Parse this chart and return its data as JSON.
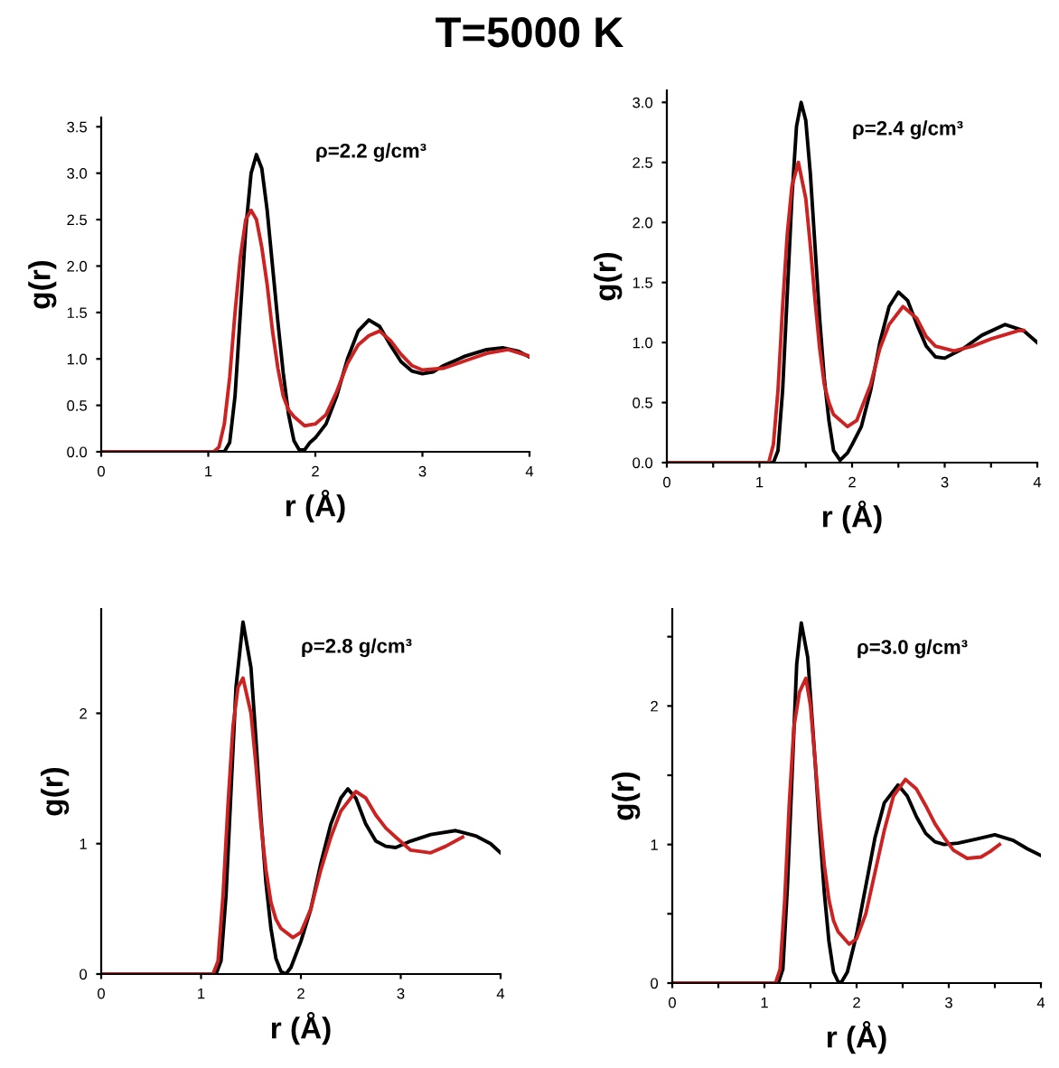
{
  "chart_data": [
    {
      "type": "line",
      "title": "T=5000 K",
      "xlabel": "r (Å)",
      "ylabel": "g(r)",
      "annotations": [
        "ρ=2.2 g/cm³"
      ],
      "xlim": [
        0,
        4
      ],
      "ylim": [
        0,
        3.6
      ],
      "xticks": [
        0,
        1,
        2,
        3,
        4
      ],
      "yticks": [
        {
          "value": 0,
          "label": "0.0"
        },
        0.5,
        {
          "value": 1,
          "label": "1.0"
        },
        1.5,
        {
          "value": 2,
          "label": "2.0"
        },
        2.5,
        {
          "value": 3,
          "label": "3.0"
        },
        3.5
      ],
      "grid": false,
      "legend": false,
      "series": [
        {
          "color": "#000000",
          "x": [
            0,
            1.15,
            1.2,
            1.25,
            1.3,
            1.35,
            1.4,
            1.45,
            1.5,
            1.55,
            1.6,
            1.65,
            1.7,
            1.75,
            1.8,
            1.85,
            1.9,
            1.95,
            2.0,
            2.1,
            2.2,
            2.3,
            2.4,
            2.5,
            2.6,
            2.7,
            2.8,
            2.9,
            3.0,
            3.1,
            3.2,
            3.4,
            3.6,
            3.75,
            3.9,
            4.0
          ],
          "values": [
            0,
            0,
            0.1,
            0.6,
            1.5,
            2.4,
            3.0,
            3.2,
            3.05,
            2.6,
            2.0,
            1.4,
            0.85,
            0.4,
            0.12,
            0.02,
            0.02,
            0.1,
            0.15,
            0.3,
            0.6,
            1.0,
            1.3,
            1.42,
            1.35,
            1.15,
            0.97,
            0.87,
            0.84,
            0.86,
            0.93,
            1.03,
            1.1,
            1.12,
            1.08,
            1.02
          ]
        },
        {
          "color": "#cc2222",
          "x": [
            0,
            1.05,
            1.1,
            1.15,
            1.2,
            1.25,
            1.3,
            1.35,
            1.4,
            1.45,
            1.5,
            1.55,
            1.6,
            1.65,
            1.7,
            1.75,
            1.8,
            1.9,
            2.0,
            2.1,
            2.2,
            2.3,
            2.4,
            2.5,
            2.6,
            2.7,
            2.8,
            2.9,
            3.0,
            3.2,
            3.4,
            3.6,
            3.8,
            4.0
          ],
          "values": [
            0,
            0,
            0.05,
            0.3,
            0.8,
            1.5,
            2.1,
            2.5,
            2.6,
            2.5,
            2.2,
            1.8,
            1.3,
            0.9,
            0.6,
            0.45,
            0.38,
            0.28,
            0.3,
            0.4,
            0.65,
            0.95,
            1.15,
            1.25,
            1.3,
            1.2,
            1.05,
            0.93,
            0.88,
            0.9,
            0.98,
            1.06,
            1.1,
            1.03
          ]
        }
      ]
    },
    {
      "type": "line",
      "xlabel": "r (Å)",
      "ylabel": "g(r)",
      "annotations": [
        "ρ=2.4 g/cm³"
      ],
      "xlim": [
        0,
        4
      ],
      "ylim": [
        0,
        3.1
      ],
      "xticks": [
        0,
        {
          "value": 0.5,
          "label": null
        },
        1,
        {
          "value": 1.5,
          "label": null
        },
        2,
        {
          "value": 2.5,
          "label": null
        },
        3,
        {
          "value": 3.5,
          "label": null
        },
        4
      ],
      "yticks": [
        {
          "value": 0,
          "label": "0.0"
        },
        0.5,
        {
          "value": 1,
          "label": "1.0"
        },
        1.5,
        {
          "value": 2,
          "label": "2.0"
        },
        2.5,
        {
          "value": 3,
          "label": "3.0"
        }
      ],
      "grid": false,
      "legend": false,
      "series": [
        {
          "color": "#000000",
          "x": [
            0,
            1.15,
            1.2,
            1.25,
            1.3,
            1.35,
            1.4,
            1.45,
            1.5,
            1.55,
            1.6,
            1.65,
            1.7,
            1.75,
            1.8,
            1.87,
            1.95,
            2.0,
            2.1,
            2.2,
            2.3,
            2.4,
            2.5,
            2.6,
            2.7,
            2.8,
            2.9,
            3.0,
            3.2,
            3.4,
            3.65,
            3.85,
            4.0
          ],
          "values": [
            0,
            0,
            0.1,
            0.6,
            1.4,
            2.2,
            2.8,
            3.0,
            2.85,
            2.4,
            1.8,
            1.2,
            0.7,
            0.35,
            0.1,
            0.02,
            0.08,
            0.15,
            0.3,
            0.6,
            1.0,
            1.3,
            1.42,
            1.35,
            1.15,
            0.97,
            0.88,
            0.87,
            0.95,
            1.06,
            1.15,
            1.1,
            1.0
          ]
        },
        {
          "color": "#cc2222",
          "x": [
            0,
            1.1,
            1.15,
            1.2,
            1.25,
            1.3,
            1.35,
            1.42,
            1.5,
            1.55,
            1.6,
            1.65,
            1.7,
            1.75,
            1.8,
            1.95,
            2.05,
            2.2,
            2.3,
            2.4,
            2.55,
            2.7,
            2.8,
            2.9,
            3.1,
            3.3,
            3.5,
            3.8,
            3.85
          ],
          "values": [
            0,
            0,
            0.15,
            0.6,
            1.3,
            1.9,
            2.3,
            2.5,
            2.2,
            1.8,
            1.35,
            0.95,
            0.65,
            0.5,
            0.4,
            0.3,
            0.35,
            0.65,
            0.95,
            1.15,
            1.3,
            1.2,
            1.05,
            0.97,
            0.93,
            0.97,
            1.03,
            1.1,
            1.1
          ]
        }
      ]
    },
    {
      "type": "line",
      "xlabel": "r (Å)",
      "ylabel": "g(r)",
      "annotations": [
        "ρ=2.8 g/cm³"
      ],
      "xlim": [
        0,
        4
      ],
      "ylim": [
        0,
        2.8
      ],
      "xticks": [
        0,
        1,
        2,
        3,
        4
      ],
      "yticks": [
        0,
        1,
        2
      ],
      "grid": false,
      "legend": false,
      "series": [
        {
          "color": "#000000",
          "x": [
            0,
            1.15,
            1.2,
            1.25,
            1.3,
            1.35,
            1.42,
            1.5,
            1.55,
            1.6,
            1.65,
            1.7,
            1.75,
            1.8,
            1.85,
            1.9,
            2.0,
            2.1,
            2.2,
            2.3,
            2.4,
            2.47,
            2.55,
            2.65,
            2.75,
            2.85,
            2.95,
            3.1,
            3.3,
            3.55,
            3.75,
            3.9,
            4.0
          ],
          "values": [
            0,
            0,
            0.1,
            0.6,
            1.4,
            2.2,
            2.7,
            2.35,
            1.8,
            1.2,
            0.7,
            0.35,
            0.12,
            0.02,
            0.0,
            0.05,
            0.25,
            0.5,
            0.85,
            1.15,
            1.35,
            1.42,
            1.35,
            1.15,
            1.02,
            0.98,
            0.97,
            1.02,
            1.07,
            1.1,
            1.06,
            1.0,
            0.93
          ]
        },
        {
          "color": "#cc2222",
          "x": [
            0,
            1.12,
            1.17,
            1.22,
            1.27,
            1.32,
            1.37,
            1.42,
            1.5,
            1.55,
            1.6,
            1.65,
            1.7,
            1.75,
            1.8,
            1.92,
            2.0,
            2.1,
            2.2,
            2.3,
            2.4,
            2.55,
            2.65,
            2.75,
            2.85,
            2.95,
            3.1,
            3.3,
            3.45,
            3.62
          ],
          "values": [
            0,
            0,
            0.1,
            0.6,
            1.3,
            1.9,
            2.2,
            2.27,
            2.0,
            1.6,
            1.15,
            0.8,
            0.55,
            0.42,
            0.35,
            0.28,
            0.32,
            0.5,
            0.8,
            1.05,
            1.25,
            1.4,
            1.35,
            1.22,
            1.12,
            1.05,
            0.95,
            0.93,
            0.98,
            1.05
          ]
        }
      ]
    },
    {
      "type": "line",
      "xlabel": "r (Å)",
      "ylabel": "g(r)",
      "annotations": [
        "ρ=3.0 g/cm³"
      ],
      "xlim": [
        0,
        4
      ],
      "ylim": [
        0,
        2.7
      ],
      "xticks": [
        0,
        {
          "value": 0.5,
          "label": null
        },
        1,
        {
          "value": 1.5,
          "label": null
        },
        2,
        {
          "value": 2.5,
          "label": null
        },
        3,
        {
          "value": 3.5,
          "label": null
        },
        4
      ],
      "yticks": [
        0,
        {
          "value": 0.5,
          "label": null
        },
        1,
        {
          "value": 1.5,
          "label": null
        },
        2,
        {
          "value": 2.5,
          "label": null
        }
      ],
      "grid": false,
      "legend": false,
      "series": [
        {
          "color": "#000000",
          "x": [
            0,
            1.15,
            1.2,
            1.25,
            1.3,
            1.35,
            1.4,
            1.47,
            1.55,
            1.6,
            1.65,
            1.7,
            1.75,
            1.8,
            1.83,
            1.9,
            2.0,
            2.1,
            2.2,
            2.3,
            2.45,
            2.55,
            2.65,
            2.75,
            2.85,
            2.95,
            3.1,
            3.3,
            3.5,
            3.7,
            3.85,
            4.0
          ],
          "values": [
            0,
            0,
            0.1,
            0.7,
            1.5,
            2.3,
            2.6,
            2.35,
            1.6,
            1.1,
            0.65,
            0.3,
            0.08,
            0.01,
            0.0,
            0.08,
            0.35,
            0.7,
            1.05,
            1.3,
            1.43,
            1.35,
            1.2,
            1.08,
            1.02,
            1.0,
            1.01,
            1.04,
            1.07,
            1.03,
            0.97,
            0.92
          ]
        },
        {
          "color": "#cc2222",
          "x": [
            0,
            1.12,
            1.17,
            1.22,
            1.27,
            1.32,
            1.38,
            1.45,
            1.5,
            1.55,
            1.6,
            1.65,
            1.7,
            1.75,
            1.8,
            1.92,
            2.0,
            2.1,
            2.2,
            2.3,
            2.4,
            2.53,
            2.65,
            2.75,
            2.85,
            2.95,
            3.05,
            3.2,
            3.35,
            3.45,
            3.55
          ],
          "values": [
            0,
            0,
            0.1,
            0.6,
            1.3,
            1.85,
            2.1,
            2.2,
            2.0,
            1.6,
            1.2,
            0.85,
            0.6,
            0.45,
            0.37,
            0.28,
            0.32,
            0.5,
            0.8,
            1.1,
            1.35,
            1.47,
            1.4,
            1.28,
            1.15,
            1.05,
            0.96,
            0.9,
            0.91,
            0.95,
            1.0
          ]
        }
      ]
    }
  ]
}
